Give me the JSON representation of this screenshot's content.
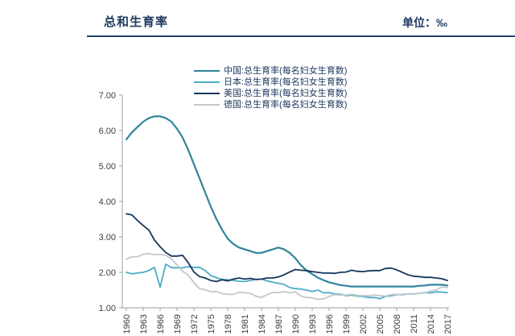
{
  "header": {
    "title": "总和生育率",
    "unit": "单位：‰"
  },
  "chart_data": {
    "type": "line",
    "title": "总和生育率",
    "unit": "‰",
    "grid": false,
    "legend_position": "top-center",
    "ylim": [
      1.0,
      7.0
    ],
    "yticks": [
      7,
      6,
      5,
      4,
      3,
      2,
      1
    ],
    "x": [
      1960,
      1961,
      1962,
      1963,
      1964,
      1965,
      1966,
      1967,
      1968,
      1969,
      1970,
      1971,
      1972,
      1973,
      1974,
      1975,
      1976,
      1977,
      1978,
      1979,
      1980,
      1981,
      1982,
      1983,
      1984,
      1985,
      1986,
      1987,
      1988,
      1989,
      1990,
      1991,
      1992,
      1993,
      1994,
      1995,
      1996,
      1997,
      1998,
      1999,
      2000,
      2001,
      2002,
      2003,
      2004,
      2005,
      2006,
      2007,
      2008,
      2009,
      2010,
      2011,
      2012,
      2013,
      2014,
      2015,
      2016,
      2017
    ],
    "xticks": [
      1960,
      1963,
      1966,
      1969,
      1972,
      1975,
      1978,
      1981,
      1984,
      1987,
      1990,
      1993,
      1996,
      1999,
      2002,
      2005,
      2008,
      2011,
      2014,
      2017
    ],
    "series": [
      {
        "name": "中国:总生育率(每名妇女生育数)",
        "color": "#31849b",
        "values": [
          5.75,
          5.95,
          6.1,
          6.25,
          6.35,
          6.4,
          6.4,
          6.35,
          6.25,
          6.05,
          5.8,
          5.45,
          5.05,
          4.65,
          4.25,
          3.85,
          3.5,
          3.2,
          2.95,
          2.8,
          2.7,
          2.65,
          2.6,
          2.55,
          2.55,
          2.6,
          2.65,
          2.7,
          2.65,
          2.55,
          2.4,
          2.2,
          2.05,
          1.95,
          1.85,
          1.78,
          1.72,
          1.68,
          1.64,
          1.62,
          1.6,
          1.6,
          1.6,
          1.6,
          1.6,
          1.6,
          1.6,
          1.6,
          1.6,
          1.6,
          1.6,
          1.6,
          1.62,
          1.63,
          1.65,
          1.65,
          1.65,
          1.63
        ]
      },
      {
        "name": "日本:总生育率(每名妇女生育数)",
        "color": "#4bacc6",
        "values": [
          2.0,
          1.96,
          1.98,
          2.0,
          2.05,
          2.14,
          1.58,
          2.23,
          2.13,
          2.13,
          2.13,
          2.16,
          2.14,
          2.14,
          2.05,
          1.91,
          1.85,
          1.8,
          1.79,
          1.77,
          1.75,
          1.74,
          1.77,
          1.8,
          1.81,
          1.76,
          1.72,
          1.69,
          1.66,
          1.57,
          1.54,
          1.53,
          1.5,
          1.46,
          1.5,
          1.42,
          1.43,
          1.39,
          1.38,
          1.34,
          1.36,
          1.33,
          1.32,
          1.29,
          1.29,
          1.26,
          1.32,
          1.34,
          1.37,
          1.37,
          1.39,
          1.39,
          1.41,
          1.43,
          1.42,
          1.45,
          1.44,
          1.43
        ]
      },
      {
        "name": "美国:总生育率(每名妇女生育数)",
        "color": "#17375e",
        "values": [
          3.65,
          3.62,
          3.46,
          3.32,
          3.19,
          2.91,
          2.72,
          2.56,
          2.46,
          2.46,
          2.48,
          2.27,
          2.01,
          1.88,
          1.84,
          1.77,
          1.74,
          1.79,
          1.76,
          1.81,
          1.84,
          1.81,
          1.83,
          1.8,
          1.81,
          1.84,
          1.84,
          1.87,
          1.93,
          2.01,
          2.08,
          2.06,
          2.05,
          2.02,
          2.0,
          1.98,
          1.98,
          1.97,
          2.0,
          2.01,
          2.06,
          2.03,
          2.02,
          2.04,
          2.05,
          2.05,
          2.11,
          2.12,
          2.07,
          2.0,
          1.93,
          1.89,
          1.88,
          1.86,
          1.86,
          1.84,
          1.82,
          1.77
        ]
      },
      {
        "name": "德国:总生育率(每名妇女生育数)",
        "color": "#c3c7cd",
        "values": [
          2.37,
          2.44,
          2.44,
          2.51,
          2.53,
          2.5,
          2.51,
          2.48,
          2.38,
          2.21,
          2.03,
          1.92,
          1.71,
          1.54,
          1.51,
          1.45,
          1.46,
          1.4,
          1.38,
          1.38,
          1.44,
          1.43,
          1.41,
          1.33,
          1.29,
          1.37,
          1.43,
          1.43,
          1.46,
          1.42,
          1.45,
          1.33,
          1.29,
          1.28,
          1.24,
          1.25,
          1.32,
          1.37,
          1.36,
          1.36,
          1.38,
          1.35,
          1.34,
          1.34,
          1.36,
          1.34,
          1.33,
          1.37,
          1.38,
          1.36,
          1.39,
          1.39,
          1.41,
          1.42,
          1.47,
          1.5,
          1.59,
          1.57
        ]
      }
    ]
  }
}
